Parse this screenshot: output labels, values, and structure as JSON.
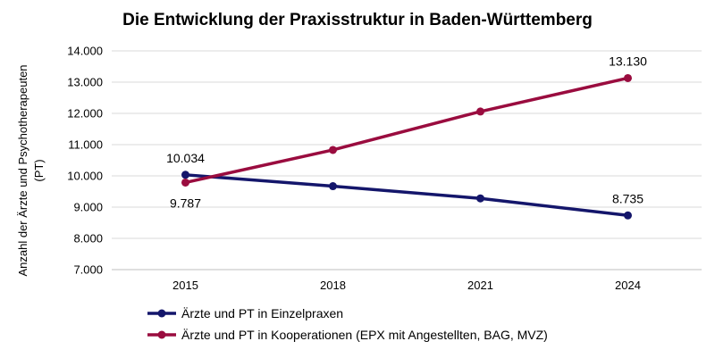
{
  "chart_data": {
    "type": "line",
    "title": "Die Entwicklung der Praxisstruktur in Baden-Württemberg",
    "xlabel": "",
    "ylabel_lines": [
      "Anzahl der Ärzte und Psychotherapeuten",
      "(PT)"
    ],
    "categories": [
      "2015",
      "2018",
      "2021",
      "2024"
    ],
    "ylim": [
      7000,
      14000
    ],
    "yticks": [
      7000,
      8000,
      9000,
      10000,
      11000,
      12000,
      13000,
      14000
    ],
    "ytick_labels": [
      "7.000",
      "8.000",
      "9.000",
      "10.000",
      "11.000",
      "12.000",
      "13.000",
      "14.000"
    ],
    "grid": true,
    "legend_position": "bottom",
    "series": [
      {
        "name": "Ärzte und PT in Einzelpraxen",
        "color": "#14166b",
        "values": [
          10034,
          9670,
          9280,
          8735
        ],
        "labels": [
          {
            "index": 0,
            "text": "10.034",
            "position": "above"
          },
          {
            "index": 3,
            "text": "8.735",
            "position": "above"
          }
        ]
      },
      {
        "name": "Ärzte und PT in Kooperationen (EPX mit Angestellten, BAG, MVZ)",
        "color": "#9a0c3f",
        "values": [
          9787,
          10830,
          12060,
          13130
        ],
        "labels": [
          {
            "index": 0,
            "text": "9.787",
            "position": "below"
          },
          {
            "index": 3,
            "text": "13.130",
            "position": "above"
          }
        ]
      }
    ]
  }
}
